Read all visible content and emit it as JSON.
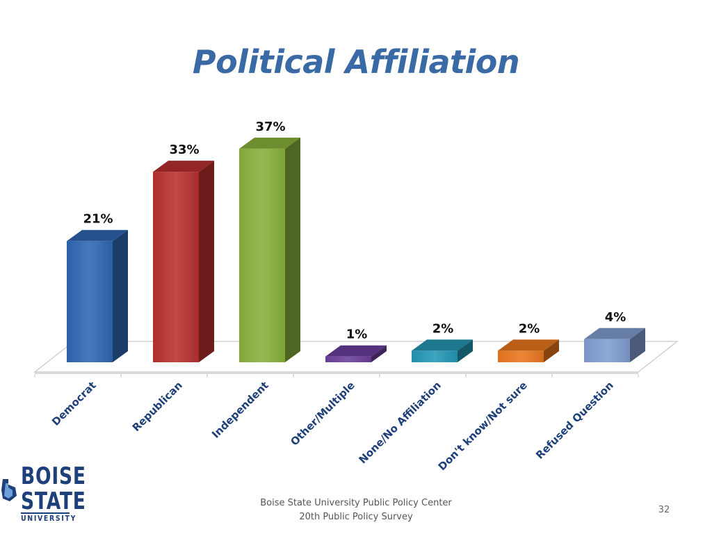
{
  "slide": {
    "title": "Political Affiliation",
    "footer_line1": "Boise State University  Public Policy Center",
    "footer_line2": "20th Public Policy Survey",
    "page_number": "32"
  },
  "logo": {
    "line1": "BOISE",
    "line2": "STATE",
    "line3": "UNIVERSITY",
    "icon": "idaho-state-icon"
  },
  "chart_data": {
    "type": "bar",
    "title": "Political Affiliation",
    "xlabel": "",
    "ylabel": "",
    "ylim": [
      0,
      40
    ],
    "grid": false,
    "legend": "none",
    "categories": [
      "Democrat",
      "Republican",
      "Independent",
      "Other/Multiple",
      "None/No Affiliation",
      "Don't know/Not sure",
      "Refused Question"
    ],
    "values": [
      21,
      33,
      37,
      1,
      2,
      2,
      4
    ],
    "data_labels": [
      "21%",
      "33%",
      "37%",
      "1%",
      "2%",
      "2%",
      "4%"
    ],
    "colors": [
      "#2e67b3",
      "#b8302e",
      "#88b03a",
      "#6a3f9a",
      "#2496b4",
      "#e8761e",
      "#7f9ccf"
    ]
  }
}
